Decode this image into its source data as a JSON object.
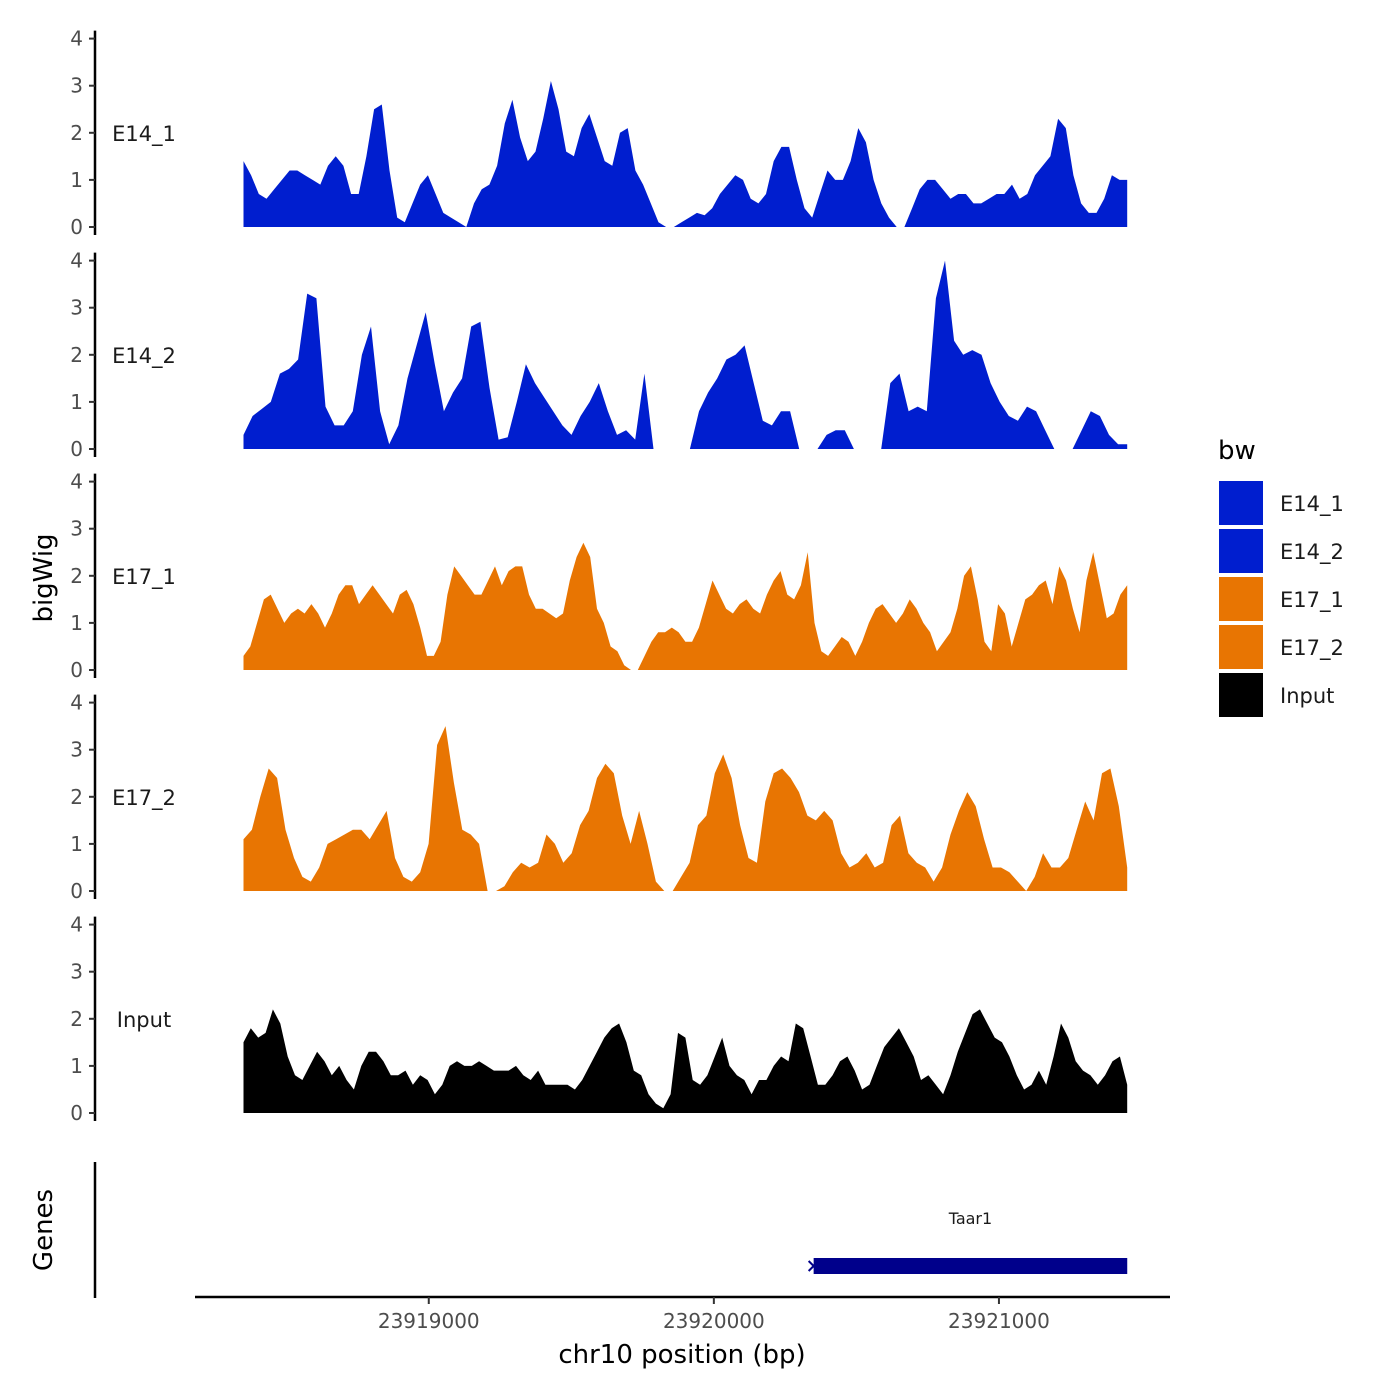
{
  "chart_data": {
    "type": "area",
    "ylabel": "bigWig",
    "xlabel": "chr10 position (bp)",
    "gene_track_label": "Genes",
    "x_range": [
      23918350,
      23921450
    ],
    "x_axis_domain": [
      23918180,
      23921600
    ],
    "x_ticks": [
      23919000,
      23920000,
      23921000
    ],
    "x_tick_labels": [
      "23919000",
      "23920000",
      "23921000"
    ],
    "y_range": [
      0,
      4
    ],
    "y_ticks": [
      0,
      1,
      2,
      3,
      4
    ],
    "y_tick_labels": [
      "0",
      "1",
      "2",
      "3",
      "4"
    ],
    "legend": {
      "title": "bw",
      "position": "right",
      "items": [
        {
          "label": "E14_1",
          "color": "#001ecf"
        },
        {
          "label": "E14_2",
          "color": "#001ecf"
        },
        {
          "label": "E17_1",
          "color": "#e87502"
        },
        {
          "label": "E17_2",
          "color": "#e87502"
        },
        {
          "label": "Input",
          "color": "#000000"
        }
      ]
    },
    "series": [
      {
        "name": "E14_1",
        "color": "#001ecf",
        "values": [
          1.4,
          1.1,
          0.7,
          0.6,
          0.8,
          1.0,
          1.2,
          1.2,
          1.1,
          1.0,
          0.9,
          1.3,
          1.5,
          1.3,
          0.7,
          0.7,
          1.5,
          2.5,
          2.6,
          1.2,
          0.2,
          0.1,
          0.5,
          0.9,
          1.1,
          0.7,
          0.3,
          0.2,
          0.1,
          0.0,
          0.5,
          0.8,
          0.9,
          1.3,
          2.2,
          2.7,
          1.9,
          1.4,
          1.6,
          2.3,
          3.1,
          2.5,
          1.6,
          1.5,
          2.1,
          2.4,
          1.9,
          1.4,
          1.3,
          2.0,
          2.1,
          1.2,
          0.9,
          0.5,
          0.1,
          0.0,
          0.0,
          0.1,
          0.2,
          0.3,
          0.25,
          0.4,
          0.7,
          0.9,
          1.1,
          1.0,
          0.6,
          0.5,
          0.7,
          1.4,
          1.7,
          1.7,
          1.0,
          0.4,
          0.2,
          0.7,
          1.2,
          1.0,
          1.0,
          1.4,
          2.1,
          1.8,
          1.0,
          0.5,
          0.2,
          0.0,
          0.0,
          0.4,
          0.8,
          1.0,
          1.0,
          0.8,
          0.6,
          0.7,
          0.7,
          0.5,
          0.5,
          0.6,
          0.7,
          0.7,
          0.9,
          0.6,
          0.7,
          1.1,
          1.3,
          1.5,
          2.3,
          2.1,
          1.1,
          0.5,
          0.3,
          0.3,
          0.6,
          1.1,
          1.0,
          1.0
        ]
      },
      {
        "name": "E14_2",
        "color": "#001ecf",
        "values": [
          0.3,
          0.7,
          0.85,
          1.0,
          1.6,
          1.7,
          1.9,
          3.3,
          3.2,
          0.9,
          0.5,
          0.5,
          0.8,
          2.0,
          2.6,
          0.8,
          0.1,
          0.5,
          1.5,
          2.2,
          2.9,
          1.8,
          0.8,
          1.2,
          1.5,
          2.6,
          2.7,
          1.3,
          0.2,
          0.25,
          1.0,
          1.8,
          1.4,
          1.1,
          0.8,
          0.5,
          0.3,
          0.7,
          1.0,
          1.4,
          0.8,
          0.3,
          0.4,
          0.2,
          1.6,
          0.0,
          0.0,
          0.0,
          0.0,
          0.0,
          0.8,
          1.2,
          1.5,
          1.9,
          2.0,
          2.2,
          1.4,
          0.6,
          0.5,
          0.8,
          0.8,
          0.0,
          0.0,
          0.0,
          0.3,
          0.4,
          0.4,
          0.0,
          0.0,
          0.0,
          0.0,
          1.4,
          1.6,
          0.8,
          0.9,
          0.8,
          3.2,
          4.0,
          2.3,
          2.0,
          2.1,
          2.0,
          1.4,
          1.0,
          0.7,
          0.6,
          0.9,
          0.8,
          0.4,
          0.0,
          0.0,
          0.0,
          0.4,
          0.8,
          0.7,
          0.3,
          0.1,
          0.1
        ]
      },
      {
        "name": "E17_1",
        "color": "#e87502",
        "values": [
          0.3,
          0.5,
          1.0,
          1.5,
          1.6,
          1.3,
          1.0,
          1.2,
          1.3,
          1.2,
          1.4,
          1.2,
          0.9,
          1.2,
          1.6,
          1.8,
          1.8,
          1.4,
          1.6,
          1.8,
          1.6,
          1.4,
          1.2,
          1.6,
          1.7,
          1.4,
          0.9,
          0.3,
          0.3,
          0.6,
          1.6,
          2.2,
          2.0,
          1.8,
          1.6,
          1.6,
          1.9,
          2.2,
          1.8,
          2.1,
          2.2,
          2.2,
          1.6,
          1.3,
          1.3,
          1.2,
          1.1,
          1.2,
          1.9,
          2.4,
          2.7,
          2.4,
          1.3,
          1.0,
          0.5,
          0.4,
          0.1,
          0.0,
          0.0,
          0.3,
          0.6,
          0.8,
          0.8,
          0.9,
          0.8,
          0.6,
          0.6,
          0.9,
          1.4,
          1.9,
          1.6,
          1.3,
          1.2,
          1.4,
          1.5,
          1.3,
          1.2,
          1.6,
          1.9,
          2.1,
          1.6,
          1.5,
          1.8,
          2.5,
          1.0,
          0.4,
          0.3,
          0.5,
          0.7,
          0.6,
          0.3,
          0.6,
          1.0,
          1.3,
          1.4,
          1.2,
          1.0,
          1.2,
          1.5,
          1.3,
          1.0,
          0.8,
          0.4,
          0.6,
          0.8,
          1.3,
          2.0,
          2.2,
          1.5,
          0.6,
          0.4,
          1.4,
          1.2,
          0.5,
          1.0,
          1.5,
          1.6,
          1.8,
          1.9,
          1.4,
          2.2,
          1.9,
          1.3,
          0.8,
          1.9,
          2.5,
          1.8,
          1.1,
          1.2,
          1.6,
          1.8
        ]
      },
      {
        "name": "E17_2",
        "color": "#e87502",
        "values": [
          1.1,
          1.3,
          2.0,
          2.6,
          2.4,
          1.3,
          0.7,
          0.3,
          0.2,
          0.5,
          1.0,
          1.1,
          1.2,
          1.3,
          1.3,
          1.1,
          1.4,
          1.7,
          0.7,
          0.3,
          0.2,
          0.4,
          1.0,
          3.1,
          3.5,
          2.3,
          1.3,
          1.2,
          1.0,
          0.0,
          0.0,
          0.1,
          0.4,
          0.6,
          0.5,
          0.6,
          1.2,
          1.0,
          0.6,
          0.8,
          1.4,
          1.7,
          2.4,
          2.7,
          2.5,
          1.6,
          1.0,
          1.7,
          1.0,
          0.2,
          0.0,
          0.0,
          0.3,
          0.6,
          1.4,
          1.6,
          2.5,
          2.9,
          2.4,
          1.4,
          0.7,
          0.6,
          1.9,
          2.5,
          2.6,
          2.4,
          2.1,
          1.6,
          1.5,
          1.7,
          1.5,
          0.8,
          0.5,
          0.6,
          0.8,
          0.5,
          0.6,
          1.4,
          1.6,
          0.8,
          0.6,
          0.5,
          0.2,
          0.5,
          1.2,
          1.7,
          2.1,
          1.8,
          1.1,
          0.5,
          0.5,
          0.4,
          0.2,
          0.0,
          0.3,
          0.8,
          0.5,
          0.5,
          0.7,
          1.3,
          1.9,
          1.5,
          2.5,
          2.6,
          1.8,
          0.5
        ]
      },
      {
        "name": "Input",
        "color": "#000000",
        "values": [
          1.5,
          1.8,
          1.6,
          1.7,
          2.2,
          1.9,
          1.2,
          0.8,
          0.7,
          1.0,
          1.3,
          1.1,
          0.8,
          1.0,
          0.7,
          0.5,
          1.0,
          1.3,
          1.3,
          1.1,
          0.8,
          0.8,
          0.9,
          0.6,
          0.8,
          0.7,
          0.4,
          0.6,
          1.0,
          1.1,
          1.0,
          1.0,
          1.1,
          1.0,
          0.9,
          0.9,
          0.9,
          1.0,
          0.8,
          0.7,
          0.9,
          0.6,
          0.6,
          0.6,
          0.6,
          0.5,
          0.7,
          1.0,
          1.3,
          1.6,
          1.8,
          1.9,
          1.5,
          0.9,
          0.8,
          0.4,
          0.2,
          0.1,
          0.4,
          1.7,
          1.6,
          0.7,
          0.6,
          0.8,
          1.2,
          1.6,
          1.0,
          0.8,
          0.7,
          0.4,
          0.7,
          0.7,
          1.0,
          1.2,
          1.1,
          1.9,
          1.8,
          1.2,
          0.6,
          0.6,
          0.8,
          1.1,
          1.2,
          0.9,
          0.5,
          0.6,
          1.0,
          1.4,
          1.6,
          1.8,
          1.5,
          1.2,
          0.7,
          0.8,
          0.6,
          0.4,
          0.8,
          1.3,
          1.7,
          2.1,
          2.2,
          1.9,
          1.6,
          1.5,
          1.2,
          0.8,
          0.5,
          0.6,
          0.9,
          0.6,
          1.2,
          1.9,
          1.6,
          1.1,
          0.9,
          0.8,
          0.6,
          0.8,
          1.1,
          1.2,
          0.6
        ]
      }
    ],
    "genes": [
      {
        "name": "Taar1",
        "start": 23920350,
        "end": 23921450,
        "strand": "-",
        "color": "#00008b"
      }
    ]
  }
}
